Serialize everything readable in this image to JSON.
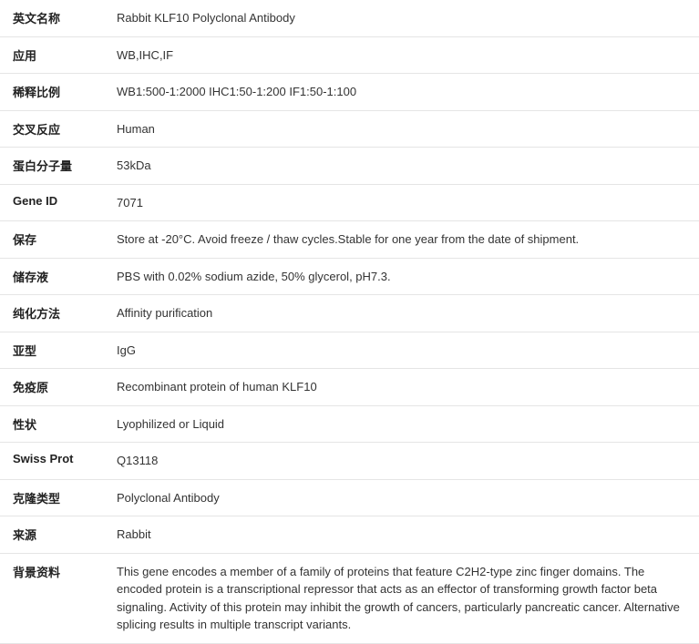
{
  "rows": [
    {
      "label": "英文名称",
      "value": "Rabbit KLF10 Polyclonal Antibody"
    },
    {
      "label": "应用",
      "value": "WB,IHC,IF"
    },
    {
      "label": "稀释比例",
      "value": "WB1:500-1:2000 IHC1:50-1:200 IF1:50-1:100"
    },
    {
      "label": "交叉反应",
      "value": "Human"
    },
    {
      "label": "蛋白分子量",
      "value": "53kDa"
    },
    {
      "label": "Gene ID",
      "value": "7071"
    },
    {
      "label": "保存",
      "value": "Store at -20°C. Avoid freeze / thaw cycles.Stable for one year from the date of shipment."
    },
    {
      "label": "储存液",
      "value": "PBS with 0.02% sodium azide, 50% glycerol, pH7.3."
    },
    {
      "label": "纯化方法",
      "value": "Affinity purification"
    },
    {
      "label": "亚型",
      "value": "IgG"
    },
    {
      "label": "免疫原",
      "value": "Recombinant protein of human KLF10"
    },
    {
      "label": "性状",
      "value": "Lyophilized or Liquid"
    },
    {
      "label": "Swiss Prot",
      "value": "Q13118"
    },
    {
      "label": "克隆类型",
      "value": "Polyclonal Antibody"
    },
    {
      "label": "来源",
      "value": "Rabbit"
    },
    {
      "label": "背景资料",
      "value": "This gene encodes a member of a family of proteins that feature C2H2-type zinc finger domains. The encoded protein is a transcriptional repressor that acts as an effector of transforming growth factor beta signaling. Activity of this protein may inhibit the growth of cancers, particularly pancreatic cancer. Alternative splicing results in multiple transcript variants."
    }
  ]
}
